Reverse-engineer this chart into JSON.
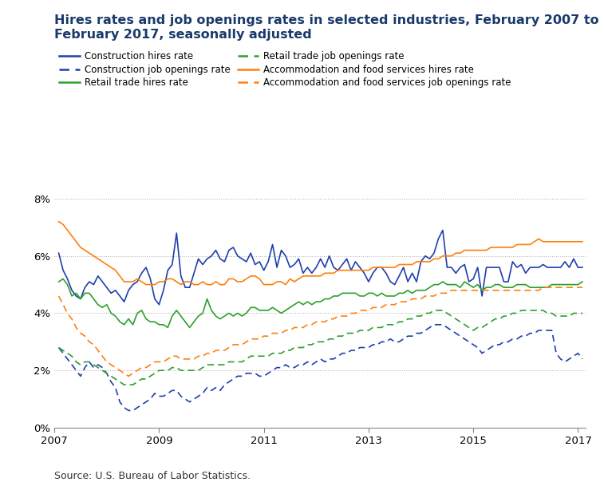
{
  "title": "Hires rates and job openings rates in selected industries, February 2007 to\nFebruary 2017, seasonally adjusted",
  "source": "Source: U.S. Bureau of Labor Statistics.",
  "title_color": "#1a3a6b",
  "title_fontsize": 11.5,
  "colors": {
    "construction": "#1f3fad",
    "retail": "#2ca02c",
    "accom": "#ff7f0e"
  },
  "legend_entries": [
    {
      "label": "Construction hires rate",
      "color": "#1f3fad",
      "dashed": false
    },
    {
      "label": "Retail trade hires rate",
      "color": "#2ca02c",
      "dashed": false
    },
    {
      "label": "Accommodation and food services hires rate",
      "color": "#ff7f0e",
      "dashed": false
    },
    {
      "label": "Construction job openings rate",
      "color": "#1f3fad",
      "dashed": true
    },
    {
      "label": "Retail trade job openings rate",
      "color": "#2ca02c",
      "dashed": true
    },
    {
      "label": "Accommodation and food services job openings rate",
      "color": "#ff7f0e",
      "dashed": true
    }
  ],
  "ylim": [
    0,
    9
  ],
  "yticks": [
    0,
    2,
    4,
    6,
    8
  ],
  "ytick_labels": [
    "0%",
    "2%",
    "4%",
    "6%",
    "8%"
  ],
  "xticks": [
    2007,
    2009,
    2011,
    2013,
    2015,
    2017
  ],
  "gridcolor": "#b0b0b0",
  "construction_hires": [
    6.1,
    5.5,
    5.2,
    4.8,
    4.6,
    4.5,
    4.9,
    5.1,
    5.0,
    5.3,
    5.1,
    4.9,
    4.7,
    4.8,
    4.6,
    4.4,
    4.8,
    5.0,
    5.1,
    5.4,
    5.6,
    5.2,
    4.5,
    4.3,
    4.8,
    5.5,
    5.7,
    6.8,
    5.3,
    4.9,
    4.9,
    5.4,
    5.9,
    5.7,
    5.9,
    6.0,
    6.2,
    5.9,
    5.8,
    6.2,
    6.3,
    6.0,
    5.9,
    5.8,
    6.1,
    5.7,
    5.8,
    5.5,
    5.8,
    6.4,
    5.6,
    6.2,
    6.0,
    5.6,
    5.7,
    5.9,
    5.4,
    5.6,
    5.4,
    5.6,
    5.9,
    5.6,
    6.0,
    5.6,
    5.5,
    5.7,
    5.9,
    5.5,
    5.8,
    5.6,
    5.4,
    5.1,
    5.4,
    5.6,
    5.6,
    5.4,
    5.1,
    5.0,
    5.3,
    5.6,
    5.1,
    5.4,
    5.1,
    5.8,
    6.0,
    5.9,
    6.1,
    6.6,
    6.9,
    5.6,
    5.6,
    5.4,
    5.6,
    5.7,
    5.1,
    5.2,
    5.6,
    4.6,
    5.6,
    5.6,
    5.6,
    5.6,
    5.1,
    5.1,
    5.8,
    5.6,
    5.7,
    5.4,
    5.6,
    5.6,
    5.6,
    5.7,
    5.6,
    5.6,
    5.6,
    5.6,
    5.8,
    5.6,
    5.9,
    5.6,
    5.6
  ],
  "retail_hires": [
    5.1,
    5.2,
    5.0,
    4.6,
    4.7,
    4.5,
    4.7,
    4.7,
    4.5,
    4.3,
    4.2,
    4.3,
    4.0,
    3.9,
    3.7,
    3.6,
    3.8,
    3.6,
    4.0,
    4.1,
    3.8,
    3.7,
    3.7,
    3.6,
    3.6,
    3.5,
    3.9,
    4.1,
    3.9,
    3.7,
    3.5,
    3.7,
    3.9,
    4.0,
    4.5,
    4.1,
    3.9,
    3.8,
    3.9,
    4.0,
    3.9,
    4.0,
    3.9,
    4.0,
    4.2,
    4.2,
    4.1,
    4.1,
    4.1,
    4.2,
    4.1,
    4.0,
    4.1,
    4.2,
    4.3,
    4.4,
    4.3,
    4.4,
    4.3,
    4.4,
    4.4,
    4.5,
    4.5,
    4.6,
    4.6,
    4.7,
    4.7,
    4.7,
    4.7,
    4.6,
    4.6,
    4.7,
    4.7,
    4.6,
    4.7,
    4.6,
    4.6,
    4.6,
    4.7,
    4.7,
    4.8,
    4.7,
    4.8,
    4.8,
    4.8,
    4.9,
    5.0,
    5.0,
    5.1,
    5.0,
    5.0,
    5.0,
    4.9,
    5.1,
    5.0,
    4.9,
    5.0,
    4.8,
    4.9,
    4.9,
    5.0,
    5.0,
    4.9,
    4.9,
    4.9,
    5.0,
    5.0,
    5.0,
    4.9,
    4.9,
    4.9,
    4.9,
    4.9,
    5.0,
    5.0,
    5.0,
    5.0,
    5.0,
    5.0,
    5.0,
    5.1
  ],
  "accom_hires": [
    7.2,
    7.1,
    6.9,
    6.7,
    6.5,
    6.3,
    6.2,
    6.1,
    6.0,
    5.9,
    5.8,
    5.7,
    5.6,
    5.5,
    5.3,
    5.1,
    5.1,
    5.1,
    5.2,
    5.1,
    5.0,
    5.0,
    5.0,
    5.1,
    5.1,
    5.2,
    5.2,
    5.1,
    5.0,
    5.1,
    5.1,
    5.0,
    5.0,
    5.1,
    5.0,
    5.0,
    5.1,
    5.0,
    5.0,
    5.2,
    5.2,
    5.1,
    5.1,
    5.2,
    5.3,
    5.3,
    5.2,
    5.0,
    5.0,
    5.0,
    5.1,
    5.1,
    5.0,
    5.2,
    5.1,
    5.2,
    5.3,
    5.3,
    5.3,
    5.3,
    5.3,
    5.4,
    5.4,
    5.4,
    5.5,
    5.5,
    5.5,
    5.5,
    5.5,
    5.5,
    5.5,
    5.5,
    5.6,
    5.6,
    5.6,
    5.6,
    5.6,
    5.6,
    5.7,
    5.7,
    5.7,
    5.7,
    5.8,
    5.8,
    5.8,
    5.8,
    5.9,
    5.9,
    6.0,
    6.0,
    6.0,
    6.1,
    6.1,
    6.2,
    6.2,
    6.2,
    6.2,
    6.2,
    6.2,
    6.3,
    6.3,
    6.3,
    6.3,
    6.3,
    6.3,
    6.4,
    6.4,
    6.4,
    6.4,
    6.5,
    6.6,
    6.5,
    6.5,
    6.5,
    6.5,
    6.5,
    6.5,
    6.5,
    6.5,
    6.5,
    6.5
  ],
  "construction_openings": [
    2.8,
    2.6,
    2.4,
    2.2,
    2.0,
    1.8,
    2.1,
    2.3,
    2.1,
    2.2,
    2.1,
    1.9,
    1.6,
    1.4,
    0.9,
    0.7,
    0.6,
    0.6,
    0.7,
    0.8,
    0.9,
    1.0,
    1.2,
    1.1,
    1.1,
    1.2,
    1.3,
    1.3,
    1.1,
    1.0,
    0.9,
    1.0,
    1.1,
    1.2,
    1.4,
    1.3,
    1.4,
    1.3,
    1.5,
    1.6,
    1.7,
    1.8,
    1.8,
    1.9,
    1.9,
    1.9,
    1.8,
    1.8,
    1.9,
    2.0,
    2.1,
    2.1,
    2.2,
    2.1,
    2.1,
    2.2,
    2.2,
    2.3,
    2.2,
    2.3,
    2.4,
    2.3,
    2.4,
    2.4,
    2.5,
    2.6,
    2.6,
    2.7,
    2.7,
    2.8,
    2.8,
    2.8,
    2.9,
    2.9,
    3.0,
    3.0,
    3.1,
    3.0,
    3.0,
    3.1,
    3.2,
    3.2,
    3.3,
    3.3,
    3.4,
    3.5,
    3.6,
    3.6,
    3.6,
    3.5,
    3.4,
    3.3,
    3.2,
    3.1,
    3.0,
    2.9,
    2.8,
    2.6,
    2.7,
    2.8,
    2.9,
    2.9,
    3.0,
    3.0,
    3.1,
    3.1,
    3.2,
    3.2,
    3.3,
    3.3,
    3.4,
    3.4,
    3.4,
    3.4,
    2.6,
    2.4,
    2.3,
    2.4,
    2.5,
    2.6,
    2.4
  ],
  "retail_openings": [
    2.8,
    2.7,
    2.6,
    2.5,
    2.3,
    2.2,
    2.3,
    2.3,
    2.2,
    2.1,
    2.0,
    1.9,
    1.8,
    1.7,
    1.6,
    1.5,
    1.5,
    1.5,
    1.6,
    1.7,
    1.7,
    1.8,
    1.9,
    2.0,
    2.0,
    2.0,
    2.1,
    2.1,
    2.0,
    2.0,
    2.0,
    2.0,
    2.0,
    2.1,
    2.2,
    2.2,
    2.2,
    2.2,
    2.2,
    2.3,
    2.3,
    2.3,
    2.3,
    2.4,
    2.5,
    2.5,
    2.5,
    2.5,
    2.5,
    2.6,
    2.6,
    2.6,
    2.7,
    2.7,
    2.8,
    2.8,
    2.8,
    2.9,
    2.9,
    3.0,
    3.0,
    3.0,
    3.1,
    3.1,
    3.2,
    3.2,
    3.3,
    3.3,
    3.3,
    3.4,
    3.4,
    3.4,
    3.5,
    3.5,
    3.5,
    3.6,
    3.6,
    3.6,
    3.7,
    3.7,
    3.8,
    3.8,
    3.9,
    3.9,
    4.0,
    4.0,
    4.1,
    4.1,
    4.1,
    4.0,
    3.9,
    3.8,
    3.7,
    3.6,
    3.5,
    3.4,
    3.5,
    3.5,
    3.6,
    3.7,
    3.8,
    3.8,
    3.9,
    3.9,
    4.0,
    4.0,
    4.1,
    4.1,
    4.1,
    4.1,
    4.1,
    4.1,
    4.0,
    4.0,
    3.9,
    3.9,
    3.9,
    3.9,
    4.0,
    4.0,
    4.0
  ],
  "accom_openings": [
    4.6,
    4.3,
    4.0,
    3.8,
    3.5,
    3.3,
    3.2,
    3.0,
    2.9,
    2.7,
    2.5,
    2.3,
    2.2,
    2.1,
    2.0,
    1.9,
    1.8,
    1.9,
    2.0,
    2.1,
    2.1,
    2.2,
    2.3,
    2.3,
    2.3,
    2.4,
    2.5,
    2.5,
    2.4,
    2.4,
    2.4,
    2.4,
    2.5,
    2.5,
    2.6,
    2.6,
    2.7,
    2.7,
    2.7,
    2.8,
    2.9,
    2.9,
    2.9,
    3.0,
    3.1,
    3.1,
    3.1,
    3.2,
    3.2,
    3.3,
    3.3,
    3.3,
    3.4,
    3.4,
    3.5,
    3.5,
    3.5,
    3.6,
    3.6,
    3.7,
    3.7,
    3.7,
    3.8,
    3.8,
    3.9,
    3.9,
    3.9,
    4.0,
    4.0,
    4.1,
    4.1,
    4.1,
    4.2,
    4.2,
    4.2,
    4.3,
    4.3,
    4.3,
    4.4,
    4.4,
    4.4,
    4.5,
    4.5,
    4.5,
    4.6,
    4.6,
    4.6,
    4.7,
    4.7,
    4.7,
    4.8,
    4.8,
    4.8,
    4.8,
    4.8,
    4.8,
    4.8,
    4.8,
    4.8,
    4.8,
    4.8,
    4.8,
    4.8,
    4.8,
    4.8,
    4.8,
    4.8,
    4.8,
    4.8,
    4.8,
    4.8,
    4.9,
    4.9,
    4.9,
    4.9,
    4.9,
    4.9,
    4.9,
    4.9,
    4.9,
    4.9
  ]
}
